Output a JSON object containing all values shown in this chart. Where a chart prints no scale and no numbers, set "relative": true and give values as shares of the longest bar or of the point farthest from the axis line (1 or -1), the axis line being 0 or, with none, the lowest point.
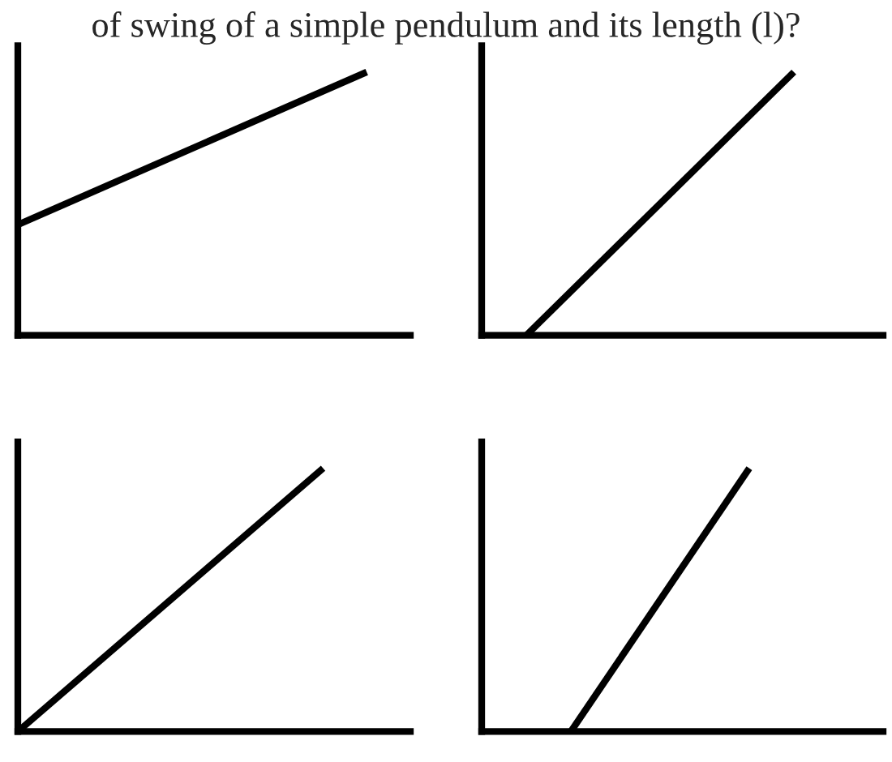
{
  "chart_data": [
    {
      "type": "line",
      "relative": true,
      "annotations": [
        "of swing of a simple pendulum and its length (l)?"
      ],
      "categories": [
        null,
        null,
        null,
        null,
        null,
        null,
        null,
        null,
        null,
        null
      ],
      "series": [
        {
          "color": "#000000",
          "values": [
            0.42,
            null,
            null,
            null,
            null,
            null,
            null,
            null,
            1,
            null
          ]
        }
      ]
    },
    {
      "type": "line",
      "relative": true,
      "categories": [
        null,
        null,
        null,
        null,
        null,
        null,
        null,
        null,
        null,
        null
      ],
      "series": [
        {
          "color": "#000000",
          "values": [
            null,
            0,
            null,
            null,
            null,
            null,
            null,
            1,
            null,
            null
          ]
        }
      ]
    },
    {
      "type": "line",
      "relative": true,
      "categories": [
        null,
        null,
        null,
        null,
        null,
        null,
        null,
        null,
        null,
        null
      ],
      "series": [
        {
          "color": "#000000",
          "values": [
            0,
            null,
            null,
            null,
            null,
            null,
            null,
            1,
            null,
            null
          ]
        }
      ]
    },
    {
      "type": "line",
      "relative": true,
      "categories": [
        null,
        null,
        null,
        null,
        null,
        null,
        null,
        null,
        null,
        null
      ],
      "series": [
        {
          "color": "#000000",
          "values": [
            null,
            null,
            0,
            null,
            null,
            null,
            1,
            null,
            null,
            null
          ]
        }
      ]
    }
  ]
}
